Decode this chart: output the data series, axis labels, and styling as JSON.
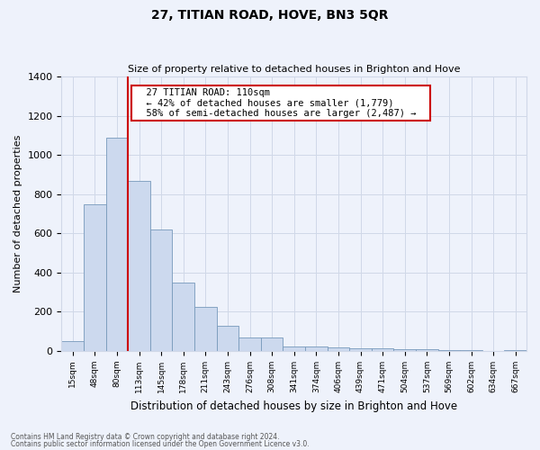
{
  "title": "27, TITIAN ROAD, HOVE, BN3 5QR",
  "subtitle": "Size of property relative to detached houses in Brighton and Hove",
  "xlabel": "Distribution of detached houses by size in Brighton and Hove",
  "ylabel": "Number of detached properties",
  "bar_color": "#ccd9ee",
  "bar_edge_color": "#7799bb",
  "bg_color": "#eef2fb",
  "grid_color": "#d0d8e8",
  "categories": [
    "15sqm",
    "48sqm",
    "80sqm",
    "113sqm",
    "145sqm",
    "178sqm",
    "211sqm",
    "243sqm",
    "276sqm",
    "308sqm",
    "341sqm",
    "374sqm",
    "406sqm",
    "439sqm",
    "471sqm",
    "504sqm",
    "537sqm",
    "569sqm",
    "602sqm",
    "634sqm",
    "667sqm"
  ],
  "values": [
    50,
    750,
    1090,
    870,
    620,
    350,
    225,
    130,
    70,
    70,
    25,
    25,
    20,
    15,
    15,
    10,
    10,
    5,
    5,
    0,
    5
  ],
  "ylim": [
    0,
    1400
  ],
  "yticks": [
    0,
    200,
    400,
    600,
    800,
    1000,
    1200,
    1400
  ],
  "vline_color": "#cc0000",
  "annotation_title": "27 TITIAN ROAD: 110sqm",
  "annotation_line1": "← 42% of detached houses are smaller (1,779)",
  "annotation_line2": "58% of semi-detached houses are larger (2,487) →",
  "annotation_box_color": "#ffffff",
  "annotation_box_edge": "#cc0000",
  "footer1": "Contains HM Land Registry data © Crown copyright and database right 2024.",
  "footer2": "Contains public sector information licensed under the Open Government Licence v3.0."
}
